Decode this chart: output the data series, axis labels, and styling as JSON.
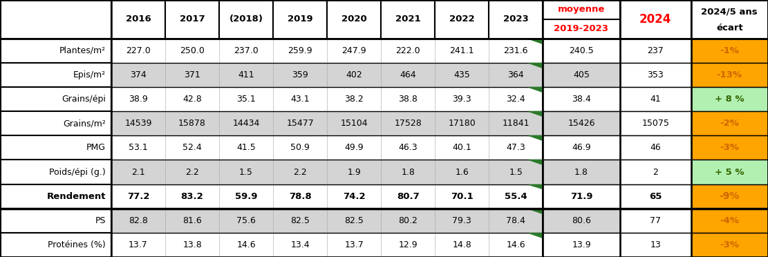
{
  "rows": [
    {
      "label": "Plantes/m²",
      "bold": false,
      "row_gray": false,
      "values": [
        "227.0",
        "250.0",
        "237.0",
        "259.9",
        "247.9",
        "222.0",
        "241.1",
        "231.6",
        "240.5",
        "237",
        "-1%"
      ],
      "ecart_bg": "orange",
      "ecart_text": "dark_orange"
    },
    {
      "label": "Epis/m²",
      "bold": false,
      "row_gray": true,
      "values": [
        "374",
        "371",
        "411",
        "359",
        "402",
        "464",
        "435",
        "364",
        "405",
        "353",
        "-13%"
      ],
      "ecart_bg": "orange",
      "ecart_text": "dark_orange"
    },
    {
      "label": "Grains/épi",
      "bold": false,
      "row_gray": false,
      "values": [
        "38.9",
        "42.8",
        "35.1",
        "43.1",
        "38.2",
        "38.8",
        "39.3",
        "32.4",
        "38.4",
        "41",
        "+ 8 %"
      ],
      "ecart_bg": "green",
      "ecart_text": "dark_green"
    },
    {
      "label": "Grains/m²",
      "bold": false,
      "row_gray": true,
      "values": [
        "14539",
        "15878",
        "14434",
        "15477",
        "15104",
        "17528",
        "17180",
        "11841",
        "15426",
        "15075",
        "-2%"
      ],
      "ecart_bg": "orange",
      "ecart_text": "dark_orange"
    },
    {
      "label": "PMG",
      "bold": false,
      "row_gray": false,
      "values": [
        "53.1",
        "52.4",
        "41.5",
        "50.9",
        "49.9",
        "46.3",
        "40.1",
        "47.3",
        "46.9",
        "46",
        "-3%"
      ],
      "ecart_bg": "orange",
      "ecart_text": "dark_orange"
    },
    {
      "label": "Poids/épi (g.)",
      "bold": false,
      "row_gray": true,
      "values": [
        "2.1",
        "2.2",
        "1.5",
        "2.2",
        "1.9",
        "1.8",
        "1.6",
        "1.5",
        "1.8",
        "2",
        "+ 5 %"
      ],
      "ecart_bg": "green",
      "ecart_text": "dark_green"
    },
    {
      "label": "Rendement",
      "bold": true,
      "row_gray": false,
      "values": [
        "77.2",
        "83.2",
        "59.9",
        "78.8",
        "74.2",
        "80.7",
        "70.1",
        "55.4",
        "71.9",
        "65",
        "-9%"
      ],
      "ecart_bg": "orange",
      "ecart_text": "dark_orange"
    },
    {
      "label": "PS",
      "bold": false,
      "row_gray": true,
      "values": [
        "82.8",
        "81.6",
        "75.6",
        "82.5",
        "82.5",
        "80.2",
        "79.3",
        "78.4",
        "80.6",
        "77",
        "-4%"
      ],
      "ecart_bg": "orange",
      "ecart_text": "dark_orange"
    },
    {
      "label": "Protéines (%)",
      "bold": false,
      "row_gray": false,
      "values": [
        "13.7",
        "13.8",
        "14.6",
        "13.4",
        "13.7",
        "12.9",
        "14.8",
        "14.6",
        "13.9",
        "13",
        "-3%"
      ],
      "ecart_bg": "orange",
      "ecart_text": "dark_orange"
    }
  ],
  "white": "#ffffff",
  "gray_light": "#d4d4d4",
  "orange_bg": "#FFA500",
  "green_bg": "#b2f0b2",
  "dark_orange_text": "#cc6600",
  "dark_green_text": "#336600",
  "figsize": [
    11.11,
    3.72
  ],
  "dpi": 100
}
